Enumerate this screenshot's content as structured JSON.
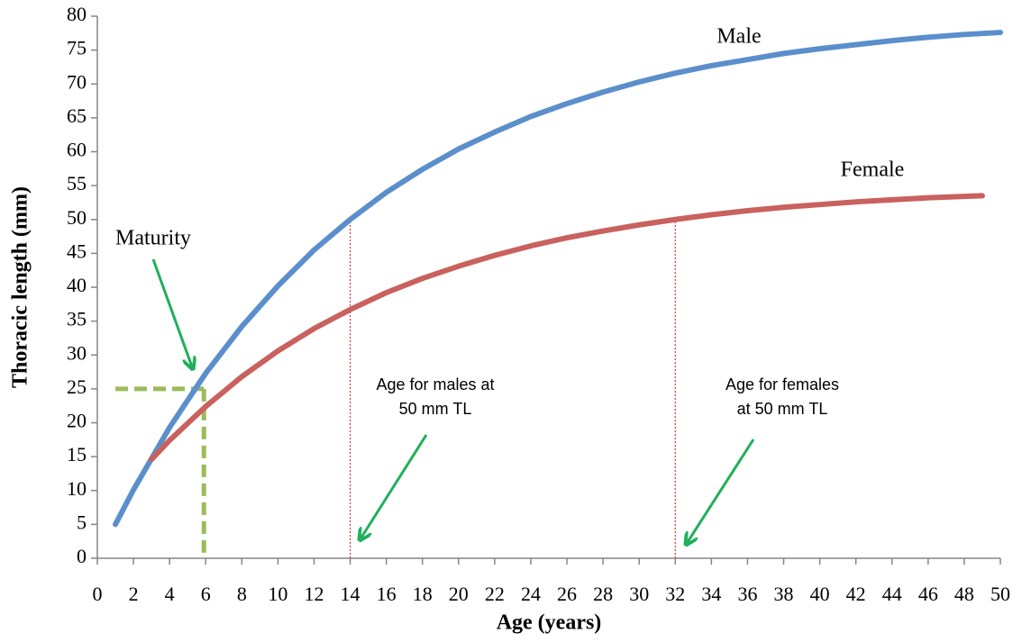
{
  "chart_data": {
    "type": "line",
    "xlabel": "Age (years)",
    "ylabel": "Thoracic length (mm)",
    "xlim": [
      0,
      50
    ],
    "ylim": [
      0,
      80
    ],
    "xticks": [
      0,
      2,
      4,
      6,
      8,
      10,
      12,
      14,
      16,
      18,
      20,
      22,
      24,
      26,
      28,
      30,
      32,
      34,
      36,
      38,
      40,
      42,
      44,
      46,
      48,
      50
    ],
    "yticks": [
      0,
      5,
      10,
      15,
      20,
      25,
      30,
      35,
      40,
      45,
      50,
      55,
      60,
      65,
      70,
      75,
      80
    ],
    "series": [
      {
        "name": "Male",
        "color": "#5b8fcc",
        "x": [
          1,
          2,
          4,
          6,
          8,
          10,
          12,
          14,
          16,
          18,
          20,
          22,
          24,
          26,
          28,
          30,
          32,
          34,
          36,
          38,
          40,
          42,
          44,
          46,
          48,
          50
        ],
        "values": [
          5.0,
          10.1,
          19.3,
          27.3,
          34.2,
          40.2,
          45.5,
          50.0,
          54.0,
          57.4,
          60.4,
          62.9,
          65.2,
          67.1,
          68.8,
          70.3,
          71.6,
          72.7,
          73.6,
          74.5,
          75.2,
          75.8,
          76.4,
          76.9,
          77.3,
          77.6
        ]
      },
      {
        "name": "Female",
        "color": "#c9615e",
        "x": [
          3,
          4,
          6,
          8,
          10,
          12,
          14,
          16,
          18,
          20,
          22,
          24,
          26,
          28,
          30,
          32,
          34,
          36,
          38,
          40,
          42,
          44,
          46,
          48,
          49
        ],
        "values": [
          14.6,
          17.4,
          22.4,
          26.8,
          30.6,
          33.9,
          36.7,
          39.2,
          41.3,
          43.1,
          44.7,
          46.1,
          47.3,
          48.3,
          49.2,
          50.0,
          50.7,
          51.3,
          51.8,
          52.2,
          52.6,
          52.9,
          53.2,
          53.4,
          53.5
        ]
      }
    ],
    "reference_lines": [
      {
        "x": 14,
        "y": 50,
        "color": "#e8302a"
      },
      {
        "x": 32,
        "y": 50,
        "color": "#e8302a"
      }
    ],
    "maturity_lines": {
      "x": [
        1,
        5.9
      ],
      "y": 25,
      "color": "#9bbb59"
    },
    "annotations": [
      {
        "text": "Maturity"
      },
      {
        "lines": [
          "Age for males at",
          "50 mm TL"
        ]
      },
      {
        "lines": [
          "Age for females",
          "at 50 mm TL"
        ]
      }
    ]
  }
}
